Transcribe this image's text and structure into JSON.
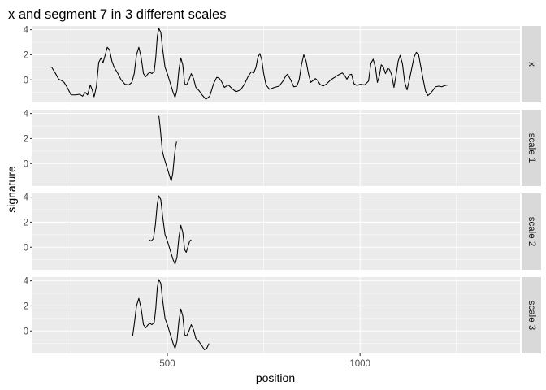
{
  "chart_data": {
    "type": "line",
    "title": "x and segment 7 in 3 different scales",
    "xlabel": "position",
    "ylabel": "signature",
    "xlim": [
      150,
      1415
    ],
    "ylim": [
      -1.8,
      4.3
    ],
    "x_ticks": [
      500,
      1000
    ],
    "x_minor_ticks": [
      250,
      750,
      1250
    ],
    "y_ticks": [
      0,
      2,
      4
    ],
    "y_minor_ticks": [
      -1,
      1,
      3
    ],
    "grid": true,
    "facets": [
      {
        "label": "x",
        "series": [
          {
            "points": [
              [
                200,
                1.0
              ],
              [
                210,
                0.5
              ],
              [
                218,
                0.05
              ],
              [
                225,
                -0.05
              ],
              [
                232,
                -0.2
              ],
              [
                240,
                -0.6
              ],
              [
                250,
                -1.2
              ],
              [
                262,
                -1.2
              ],
              [
                272,
                -1.15
              ],
              [
                280,
                -1.3
              ],
              [
                287,
                -1.0
              ],
              [
                293,
                -1.2
              ],
              [
                300,
                -0.4
              ],
              [
                305,
                -0.8
              ],
              [
                310,
                -1.35
              ],
              [
                316,
                -0.5
              ],
              [
                322,
                1.4
              ],
              [
                328,
                1.75
              ],
              [
                333,
                1.35
              ],
              [
                338,
                1.9
              ],
              [
                344,
                2.6
              ],
              [
                350,
                2.4
              ],
              [
                356,
                1.5
              ],
              [
                362,
                1.0
              ],
              [
                370,
                0.6
              ],
              [
                380,
                0.0
              ],
              [
                390,
                -0.35
              ],
              [
                400,
                -0.4
              ],
              [
                408,
                -0.2
              ],
              [
                414,
                0.5
              ],
              [
                420,
                2.0
              ],
              [
                426,
                2.6
              ],
              [
                432,
                1.8
              ],
              [
                438,
                0.5
              ],
              [
                444,
                0.25
              ],
              [
                450,
                0.5
              ],
              [
                455,
                0.6
              ],
              [
                460,
                0.5
              ],
              [
                466,
                0.7
              ],
              [
                470,
                1.8
              ],
              [
                474,
                3.5
              ],
              [
                478,
                4.1
              ],
              [
                483,
                3.8
              ],
              [
                488,
                2.4
              ],
              [
                494,
                1.0
              ],
              [
                500,
                0.5
              ],
              [
                505,
                0.0
              ],
              [
                510,
                -0.5
              ],
              [
                515,
                -1.0
              ],
              [
                520,
                -1.4
              ],
              [
                525,
                -0.8
              ],
              [
                530,
                0.8
              ],
              [
                535,
                1.75
              ],
              [
                540,
                1.2
              ],
              [
                545,
                -0.3
              ],
              [
                550,
                -0.4
              ],
              [
                556,
                0.0
              ],
              [
                562,
                0.5
              ],
              [
                568,
                0.1
              ],
              [
                574,
                -0.6
              ],
              [
                582,
                -0.85
              ],
              [
                590,
                -1.2
              ],
              [
                600,
                -1.55
              ],
              [
                610,
                -1.3
              ],
              [
                620,
                -0.3
              ],
              [
                628,
                0.2
              ],
              [
                634,
                0.15
              ],
              [
                640,
                -0.1
              ],
              [
                648,
                -0.6
              ],
              [
                658,
                -0.4
              ],
              [
                668,
                -0.7
              ],
              [
                678,
                -0.95
              ],
              [
                690,
                -0.8
              ],
              [
                700,
                -0.35
              ],
              [
                710,
                0.3
              ],
              [
                718,
                0.65
              ],
              [
                724,
                0.55
              ],
              [
                730,
                1.0
              ],
              [
                735,
                1.8
              ],
              [
                740,
                2.1
              ],
              [
                745,
                1.6
              ],
              [
                750,
                0.5
              ],
              [
                756,
                -0.4
              ],
              [
                765,
                -0.75
              ],
              [
                778,
                -0.6
              ],
              [
                790,
                -0.5
              ],
              [
                800,
                -0.1
              ],
              [
                808,
                0.35
              ],
              [
                812,
                0.45
              ],
              [
                820,
                0.0
              ],
              [
                828,
                -0.55
              ],
              [
                836,
                -0.5
              ],
              [
                842,
                0.0
              ],
              [
                848,
                1.2
              ],
              [
                854,
                2.0
              ],
              [
                860,
                1.5
              ],
              [
                866,
                0.5
              ],
              [
                872,
                -0.2
              ],
              [
                878,
                -0.05
              ],
              [
                884,
                0.1
              ],
              [
                890,
                -0.05
              ],
              [
                896,
                -0.35
              ],
              [
                904,
                -0.5
              ],
              [
                914,
                -0.3
              ],
              [
                924,
                0.0
              ],
              [
                934,
                0.2
              ],
              [
                944,
                0.4
              ],
              [
                954,
                0.55
              ],
              [
                960,
                0.35
              ],
              [
                966,
                0.05
              ],
              [
                972,
                0.4
              ],
              [
                978,
                0.45
              ],
              [
                984,
                -0.3
              ],
              [
                992,
                -0.45
              ],
              [
                1000,
                -0.35
              ],
              [
                1012,
                -0.4
              ],
              [
                1022,
                -0.1
              ],
              [
                1028,
                1.3
              ],
              [
                1034,
                1.65
              ],
              [
                1040,
                1.0
              ],
              [
                1045,
                -0.2
              ],
              [
                1050,
                0.3
              ],
              [
                1055,
                1.2
              ],
              [
                1060,
                1.05
              ],
              [
                1066,
                0.5
              ],
              [
                1071,
                0.9
              ],
              [
                1076,
                0.85
              ],
              [
                1082,
                0.4
              ],
              [
                1088,
                -0.6
              ],
              [
                1093,
                0.3
              ],
              [
                1099,
                1.5
              ],
              [
                1104,
                1.95
              ],
              [
                1110,
                1.3
              ],
              [
                1116,
                -0.2
              ],
              [
                1122,
                -0.8
              ],
              [
                1128,
                0.0
              ],
              [
                1134,
                0.9
              ],
              [
                1140,
                1.8
              ],
              [
                1146,
                2.2
              ],
              [
                1152,
                2.0
              ],
              [
                1158,
                1.0
              ],
              [
                1164,
                0.0
              ],
              [
                1170,
                -0.9
              ],
              [
                1176,
                -1.25
              ],
              [
                1182,
                -1.1
              ],
              [
                1190,
                -0.8
              ],
              [
                1196,
                -0.55
              ],
              [
                1204,
                -0.5
              ],
              [
                1212,
                -0.55
              ],
              [
                1220,
                -0.45
              ],
              [
                1228,
                -0.4
              ]
            ]
          }
        ]
      },
      {
        "label": "scale 1",
        "series": [
          {
            "points": [
              [
                478,
                3.8
              ],
              [
                481,
                3.0
              ],
              [
                484,
                2.0
              ],
              [
                487,
                1.0
              ],
              [
                491,
                0.5
              ],
              [
                496,
                0.0
              ],
              [
                501,
                -0.5
              ],
              [
                506,
                -1.0
              ],
              [
                510,
                -1.4
              ],
              [
                514,
                -0.8
              ],
              [
                518,
                0.5
              ],
              [
                521,
                1.3
              ],
              [
                524,
                1.75
              ]
            ]
          }
        ]
      },
      {
        "label": "scale 2",
        "series": [
          {
            "points": [
              [
                452,
                0.6
              ],
              [
                458,
                0.5
              ],
              [
                464,
                0.7
              ],
              [
                469,
                1.8
              ],
              [
                474,
                3.5
              ],
              [
                478,
                4.1
              ],
              [
                483,
                3.8
              ],
              [
                488,
                2.4
              ],
              [
                494,
                1.0
              ],
              [
                500,
                0.5
              ],
              [
                505,
                0.0
              ],
              [
                510,
                -0.5
              ],
              [
                515,
                -1.0
              ],
              [
                520,
                -1.35
              ],
              [
                525,
                -0.8
              ],
              [
                530,
                0.8
              ],
              [
                535,
                1.75
              ],
              [
                540,
                1.2
              ],
              [
                545,
                -0.2
              ],
              [
                549,
                -0.4
              ],
              [
                553,
                0.0
              ],
              [
                558,
                0.5
              ],
              [
                562,
                0.6
              ]
            ]
          }
        ]
      },
      {
        "label": "scale 3",
        "series": [
          {
            "points": [
              [
                410,
                -0.4
              ],
              [
                414,
                0.5
              ],
              [
                420,
                2.0
              ],
              [
                426,
                2.6
              ],
              [
                432,
                1.8
              ],
              [
                438,
                0.5
              ],
              [
                444,
                0.25
              ],
              [
                450,
                0.5
              ],
              [
                455,
                0.6
              ],
              [
                460,
                0.5
              ],
              [
                466,
                0.7
              ],
              [
                470,
                1.8
              ],
              [
                474,
                3.5
              ],
              [
                478,
                4.1
              ],
              [
                483,
                3.8
              ],
              [
                488,
                2.4
              ],
              [
                494,
                1.0
              ],
              [
                500,
                0.5
              ],
              [
                505,
                0.0
              ],
              [
                510,
                -0.5
              ],
              [
                515,
                -1.0
              ],
              [
                520,
                -1.4
              ],
              [
                525,
                -0.8
              ],
              [
                530,
                0.8
              ],
              [
                535,
                1.75
              ],
              [
                540,
                1.2
              ],
              [
                545,
                -0.3
              ],
              [
                550,
                -0.4
              ],
              [
                556,
                0.0
              ],
              [
                562,
                0.5
              ],
              [
                568,
                0.1
              ],
              [
                574,
                -0.6
              ],
              [
                582,
                -0.85
              ],
              [
                590,
                -1.2
              ],
              [
                596,
                -1.5
              ],
              [
                602,
                -1.4
              ],
              [
                608,
                -1.0
              ]
            ]
          }
        ]
      }
    ]
  }
}
